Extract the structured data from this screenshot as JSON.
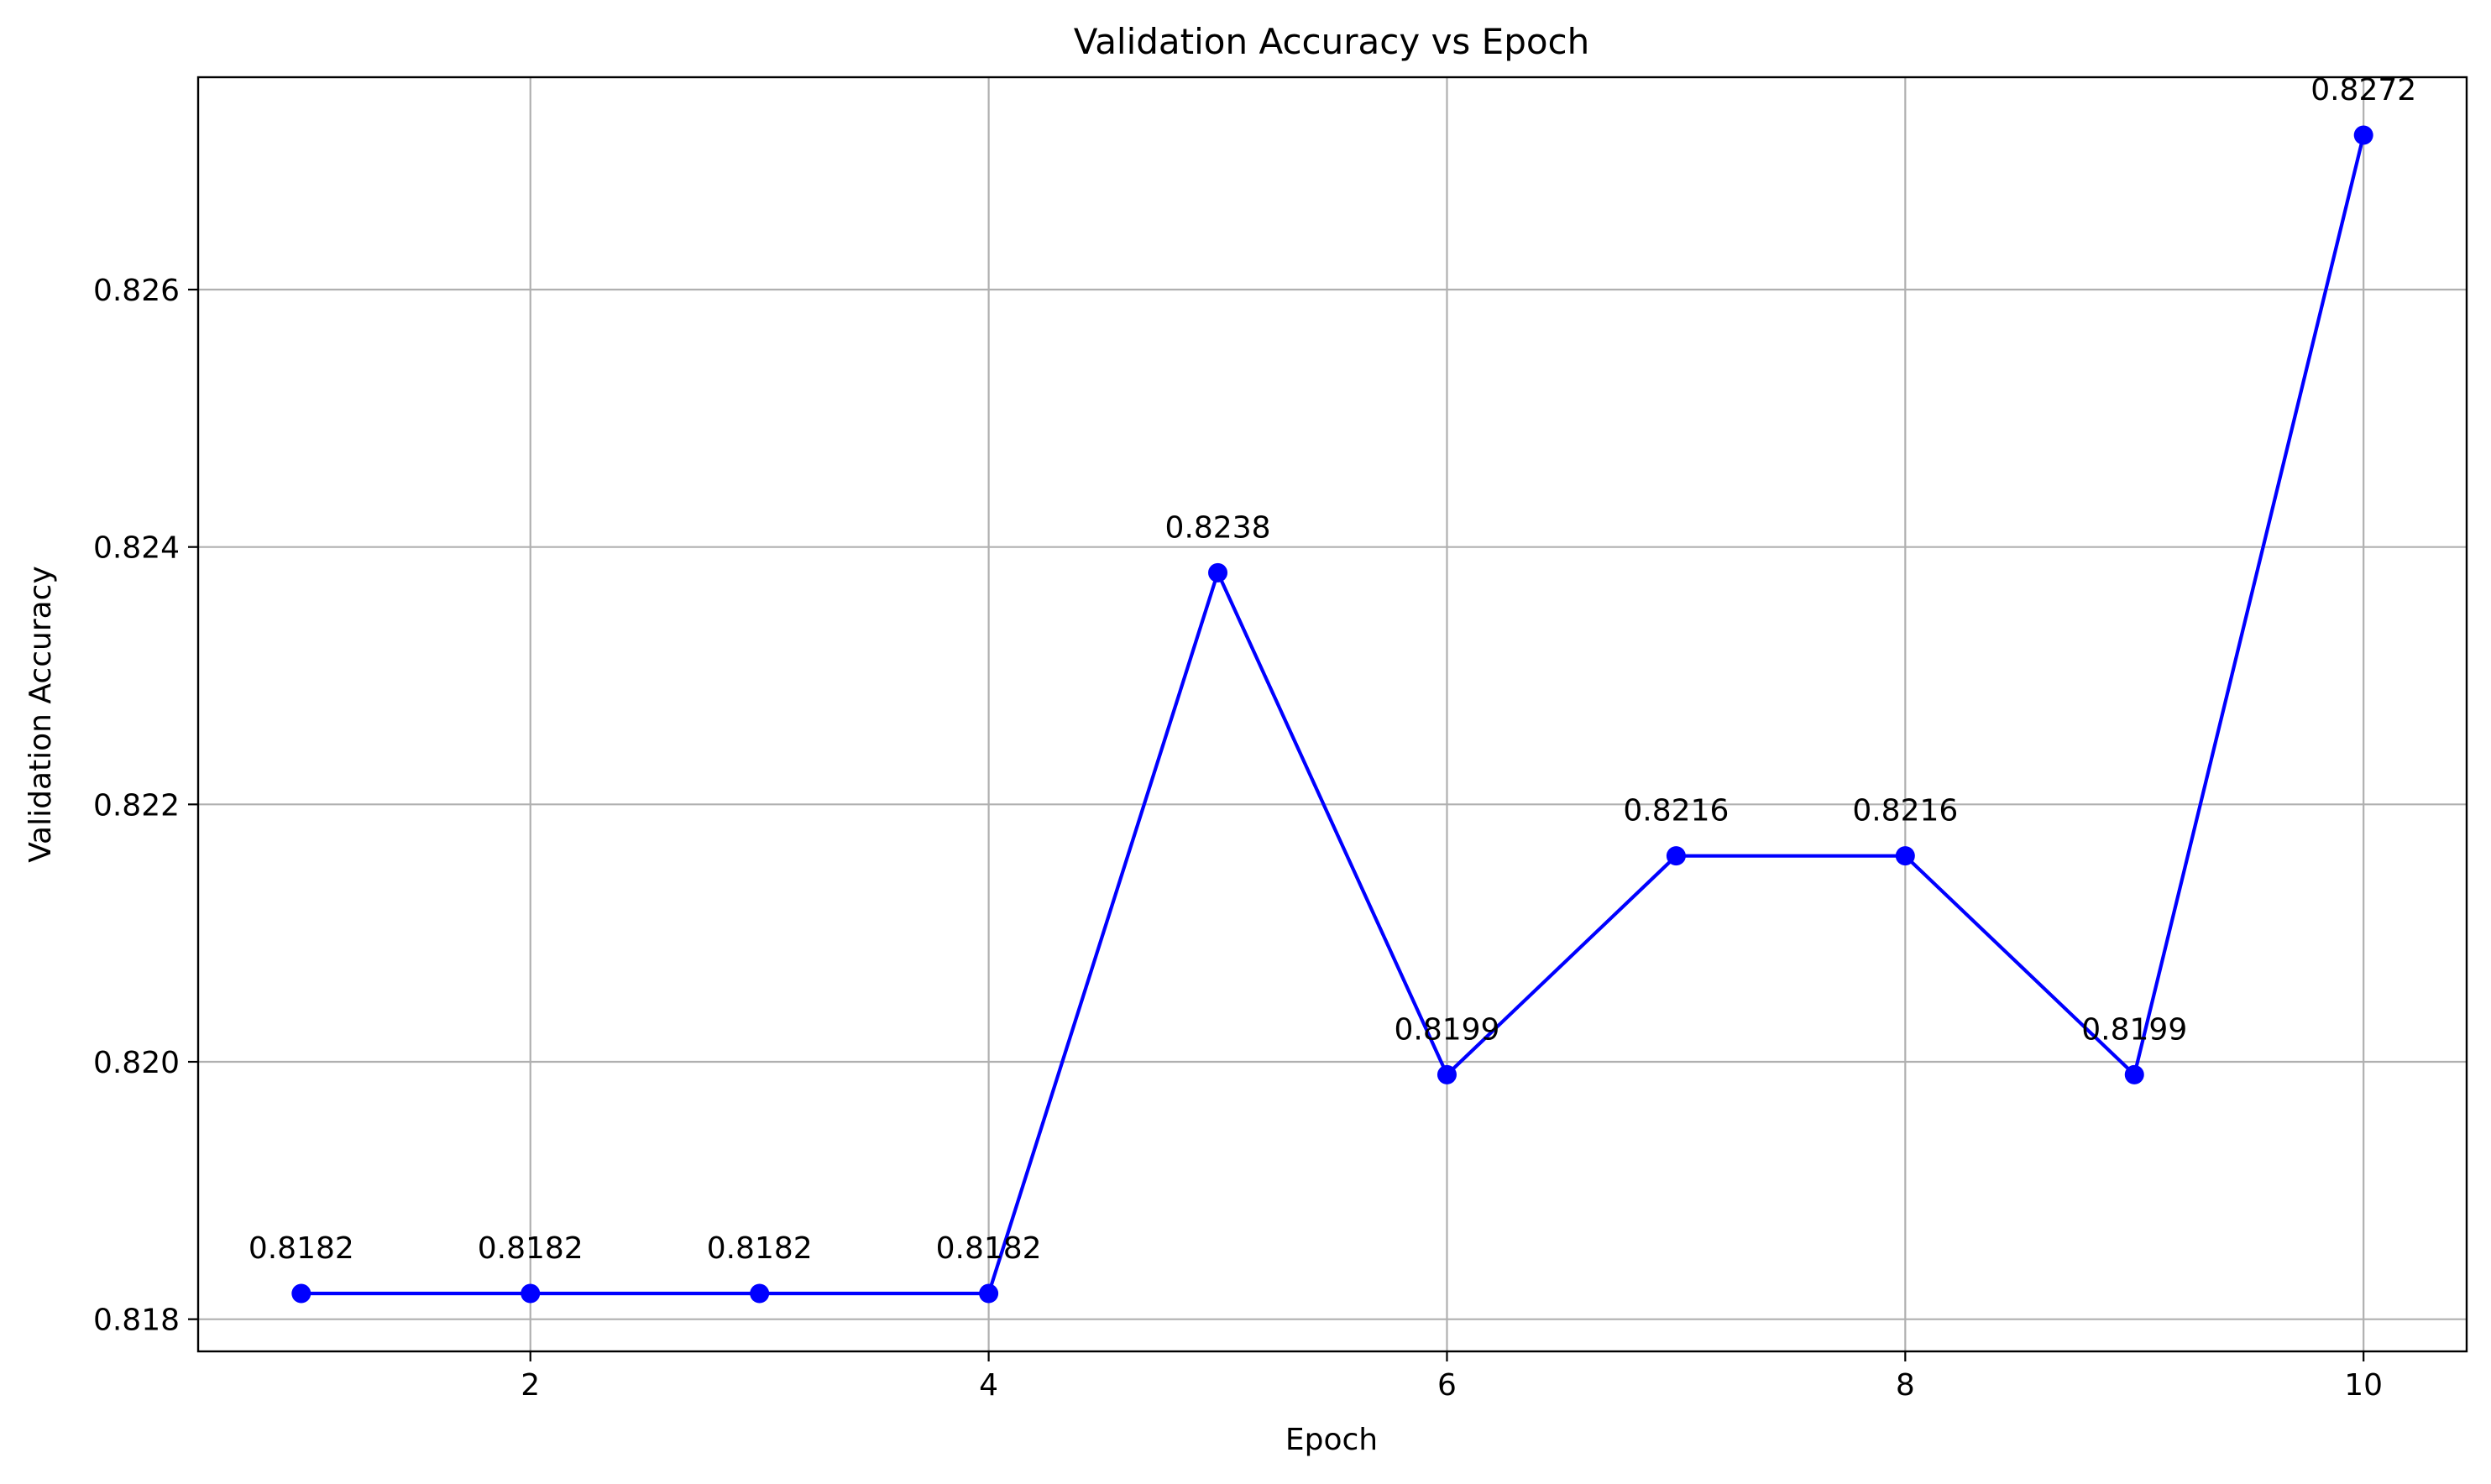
{
  "chart_data": {
    "type": "line",
    "title": "Validation Accuracy vs Epoch",
    "xlabel": "Epoch",
    "ylabel": "Validation Accuracy",
    "xlim": [
      0.55,
      10.45
    ],
    "ylim": [
      0.81775,
      0.82765
    ],
    "x_ticks": [
      2,
      4,
      6,
      8,
      10
    ],
    "x_tick_labels": [
      "2",
      "4",
      "6",
      "8",
      "10"
    ],
    "y_ticks": [
      0.818,
      0.82,
      0.822,
      0.824,
      0.826
    ],
    "y_tick_labels": [
      "0.818",
      "0.820",
      "0.822",
      "0.824",
      "0.826"
    ],
    "grid": true,
    "series": [
      {
        "color": "#0000ff",
        "marker": "circle",
        "x": [
          1,
          2,
          3,
          4,
          5,
          6,
          7,
          8,
          9,
          10
        ],
        "values": [
          0.8182,
          0.8182,
          0.8182,
          0.8182,
          0.8238,
          0.8199,
          0.8216,
          0.8216,
          0.8199,
          0.8272
        ],
        "data_labels": [
          "0.8182",
          "0.8182",
          "0.8182",
          "0.8182",
          "0.8238",
          "0.8199",
          "0.8216",
          "0.8216",
          "0.8199",
          "0.8272"
        ]
      }
    ]
  }
}
